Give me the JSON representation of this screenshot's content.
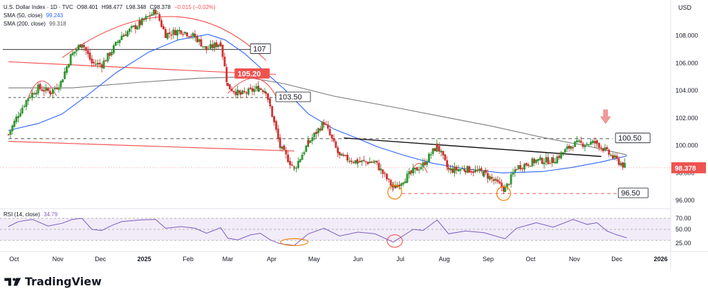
{
  "header": {
    "symbol": "U.S. Dollar Index · 1D · TVC",
    "open": "O98.401",
    "high": "H98.477",
    "low": "L98.348",
    "close": "C98.378",
    "change": "−0.015 (−0.02%)",
    "sma50_label": "SMA (50, close)",
    "sma50_value": "99.243",
    "sma200_label": "SMA (200, close)",
    "sma200_value": "99.318",
    "rsi_label": "RSI (14, close)",
    "rsi_value": "34.79"
  },
  "currency": "USD",
  "brand": "TradingView",
  "colors": {
    "up": "#26a69a",
    "down": "#ef5350",
    "candle_up": "#1e7d1e",
    "candle_down": "#c62828",
    "sma50": "#2962ff",
    "sma200": "#7a7a7a",
    "rsi": "#7e57c2",
    "annotation": "#f57c00",
    "arc": "#ef5350"
  },
  "chart_data": {
    "type": "candlestick",
    "title": "U.S. Dollar Index · 1D · TVC",
    "y_axis_ticks": [
      96.0,
      98.0,
      100.0,
      102.0,
      104.0,
      106.0,
      108.0
    ],
    "ylim": [
      95.5,
      110.0
    ],
    "x_axis_labels": [
      "Oct",
      "Nov",
      "Dec",
      "2025",
      "Feb",
      "Mar",
      "Apr",
      "May",
      "Jun",
      "Jul",
      "Aug",
      "Sep",
      "Oct",
      "Nov",
      "Dec",
      "2026"
    ],
    "last_price": 98.378,
    "price_path": [
      [
        "2024-10-01",
        100.8
      ],
      [
        "2024-10-08",
        102.3
      ],
      [
        "2024-10-15",
        103.5
      ],
      [
        "2024-10-22",
        104.2
      ],
      [
        "2024-10-31",
        103.9
      ],
      [
        "2024-11-07",
        104.6
      ],
      [
        "2024-11-14",
        106.5
      ],
      [
        "2024-11-22",
        107.5
      ],
      [
        "2024-11-29",
        106.0
      ],
      [
        "2024-12-06",
        105.9
      ],
      [
        "2024-12-13",
        106.9
      ],
      [
        "2024-12-20",
        108.0
      ],
      [
        "2025-01-02",
        108.9
      ],
      [
        "2025-01-13",
        109.8
      ],
      [
        "2025-01-20",
        108.1
      ],
      [
        "2025-01-31",
        108.4
      ],
      [
        "2025-02-10",
        107.9
      ],
      [
        "2025-02-18",
        107.0
      ],
      [
        "2025-02-28",
        107.5
      ],
      [
        "2025-03-05",
        104.3
      ],
      [
        "2025-03-14",
        103.7
      ],
      [
        "2025-03-27",
        104.2
      ],
      [
        "2025-04-01",
        104.0
      ],
      [
        "2025-04-04",
        102.8
      ],
      [
        "2025-04-11",
        99.9
      ],
      [
        "2025-04-21",
        98.3
      ],
      [
        "2025-05-01",
        100.2
      ],
      [
        "2025-05-12",
        101.7
      ],
      [
        "2025-05-23",
        99.2
      ],
      [
        "2025-06-05",
        98.8
      ],
      [
        "2025-06-17",
        98.8
      ],
      [
        "2025-06-30",
        96.9
      ],
      [
        "2025-07-14",
        98.1
      ],
      [
        "2025-07-21",
        98.6
      ],
      [
        "2025-07-31",
        100.0
      ],
      [
        "2025-08-08",
        98.2
      ],
      [
        "2025-08-20",
        98.3
      ],
      [
        "2025-09-02",
        98.0
      ],
      [
        "2025-09-17",
        96.8
      ],
      [
        "2025-09-25",
        98.4
      ],
      [
        "2025-10-09",
        98.9
      ],
      [
        "2025-10-21",
        98.9
      ],
      [
        "2025-11-04",
        100.1
      ],
      [
        "2025-11-21",
        100.2
      ],
      [
        "2025-11-28",
        99.5
      ],
      [
        "2025-12-05",
        98.9
      ],
      [
        "2025-12-12",
        98.38
      ]
    ],
    "series": [
      {
        "name": "SMA (50, close)",
        "values": [
          [
            "2024-10-01",
            101.1
          ],
          [
            "2024-10-22",
            101.6
          ],
          [
            "2024-11-08",
            102.3
          ],
          [
            "2024-11-25",
            103.6
          ],
          [
            "2024-12-16",
            105.3
          ],
          [
            "2025-01-08",
            106.8
          ],
          [
            "2025-01-29",
            107.7
          ],
          [
            "2025-02-19",
            108.1
          ],
          [
            "2025-03-03",
            107.7
          ],
          [
            "2025-03-17",
            106.7
          ],
          [
            "2025-04-01",
            105.3
          ],
          [
            "2025-04-14",
            104.1
          ],
          [
            "2025-05-01",
            102.3
          ],
          [
            "2025-05-19",
            101.2
          ],
          [
            "2025-06-05",
            100.5
          ],
          [
            "2025-06-19",
            99.9
          ],
          [
            "2025-07-07",
            99.3
          ],
          [
            "2025-07-28",
            98.7
          ],
          [
            "2025-08-20",
            98.3
          ],
          [
            "2025-09-15",
            98.0
          ],
          [
            "2025-10-13",
            98.1
          ],
          [
            "2025-11-03",
            98.4
          ],
          [
            "2025-11-24",
            98.8
          ],
          [
            "2025-12-12",
            99.243
          ]
        ]
      },
      {
        "name": "SMA (200, close)",
        "values": [
          [
            "2024-10-01",
            104.2
          ],
          [
            "2024-11-15",
            104.2
          ],
          [
            "2025-01-01",
            104.6
          ],
          [
            "2025-02-12",
            104.9
          ],
          [
            "2025-03-17",
            105.0
          ],
          [
            "2025-04-14",
            104.5
          ],
          [
            "2025-05-19",
            103.6
          ],
          [
            "2025-06-30",
            102.8
          ],
          [
            "2025-08-04",
            102.1
          ],
          [
            "2025-09-08",
            101.4
          ],
          [
            "2025-10-13",
            100.6
          ],
          [
            "2025-11-17",
            99.9
          ],
          [
            "2025-12-12",
            99.318
          ]
        ]
      }
    ],
    "rsi": {
      "label": "RSI (14, close)",
      "value": 34.79,
      "ticks": [
        25.0,
        50.0,
        70.0
      ],
      "bands": [
        30,
        70
      ],
      "values": [
        [
          "2024-10-01",
          55
        ],
        [
          "2024-10-08",
          64
        ],
        [
          "2024-10-18",
          68
        ],
        [
          "2024-10-29",
          56
        ],
        [
          "2024-11-08",
          61
        ],
        [
          "2024-11-15",
          68
        ],
        [
          "2024-11-22",
          70
        ],
        [
          "2024-11-29",
          50
        ],
        [
          "2024-12-06",
          48
        ],
        [
          "2024-12-13",
          57
        ],
        [
          "2024-12-20",
          64
        ],
        [
          "2025-01-02",
          67
        ],
        [
          "2025-01-13",
          68
        ],
        [
          "2025-01-20",
          52
        ],
        [
          "2025-01-31",
          55
        ],
        [
          "2025-02-10",
          52
        ],
        [
          "2025-02-18",
          43
        ],
        [
          "2025-02-28",
          53
        ],
        [
          "2025-03-05",
          34
        ],
        [
          "2025-03-12",
          31
        ],
        [
          "2025-03-21",
          40
        ],
        [
          "2025-03-28",
          43
        ],
        [
          "2025-04-04",
          31
        ],
        [
          "2025-04-11",
          24
        ],
        [
          "2025-04-21",
          21
        ],
        [
          "2025-05-01",
          42
        ],
        [
          "2025-05-12",
          52
        ],
        [
          "2025-05-23",
          38
        ],
        [
          "2025-06-05",
          45
        ],
        [
          "2025-06-17",
          42
        ],
        [
          "2025-06-30",
          27
        ],
        [
          "2025-07-14",
          50
        ],
        [
          "2025-07-21",
          48
        ],
        [
          "2025-07-31",
          67
        ],
        [
          "2025-08-08",
          42
        ],
        [
          "2025-08-20",
          47
        ],
        [
          "2025-09-02",
          44
        ],
        [
          "2025-09-17",
          33
        ],
        [
          "2025-09-25",
          52
        ],
        [
          "2025-10-09",
          62
        ],
        [
          "2025-10-21",
          54
        ],
        [
          "2025-11-04",
          68
        ],
        [
          "2025-11-14",
          59
        ],
        [
          "2025-11-21",
          62
        ],
        [
          "2025-11-28",
          47
        ],
        [
          "2025-12-05",
          40
        ],
        [
          "2025-12-12",
          34.79
        ]
      ]
    },
    "annotations": {
      "levels": [
        {
          "label": "107",
          "value": 107.0,
          "style": "solid"
        },
        {
          "label": "105.20",
          "value": 105.2,
          "style": "solid"
        },
        {
          "label": "103.50",
          "value": 103.5,
          "style": "dashed"
        },
        {
          "label": "100.50",
          "value": 100.5,
          "style": "dashed"
        },
        {
          "label": "96.50",
          "value": 96.5,
          "style": "dashed"
        }
      ],
      "descending_line": [
        [
          "2025-05-26",
          100.55
        ],
        [
          "2025-11-24",
          99.2
        ]
      ],
      "trend_lines_red": [
        [
          [
            "2024-10-01",
            106.1
          ],
          [
            "2025-04-01",
            105.2
          ]
        ],
        [
          [
            "2024-10-01",
            100.3
          ],
          [
            "2025-04-21",
            99.6
          ]
        ]
      ],
      "circles": [
        [
          "2025-07-01",
          96.6
        ],
        [
          "2025-09-16",
          96.5
        ]
      ],
      "rsi_circles": [
        [
          "2025-04-21",
          27
        ],
        [
          "2025-07-01",
          29
        ]
      ],
      "down_arrow": [
        "2025-11-27",
        101.8
      ],
      "arcs": [
        {
          "from": [
            "2024-10-14",
            103.2
          ],
          "peak": [
            "2024-10-24",
            104.7
          ],
          "to": [
            "2024-11-04",
            103.6
          ]
        },
        {
          "from": [
            "2024-11-08",
            106.4
          ],
          "peak": [
            "2025-01-24",
            109.4
          ],
          "to": [
            "2025-04-01",
            106.2
          ]
        },
        {
          "from": [
            "2025-03-05",
            103.8
          ],
          "peak": [
            "2025-03-24",
            104.9
          ],
          "to": [
            "2025-04-08",
            103.6
          ]
        },
        {
          "from": [
            "2025-07-12",
            97.9
          ],
          "peak": [
            "2025-07-18",
            98.7
          ],
          "to": [
            "2025-07-24",
            98.0
          ]
        }
      ]
    }
  }
}
